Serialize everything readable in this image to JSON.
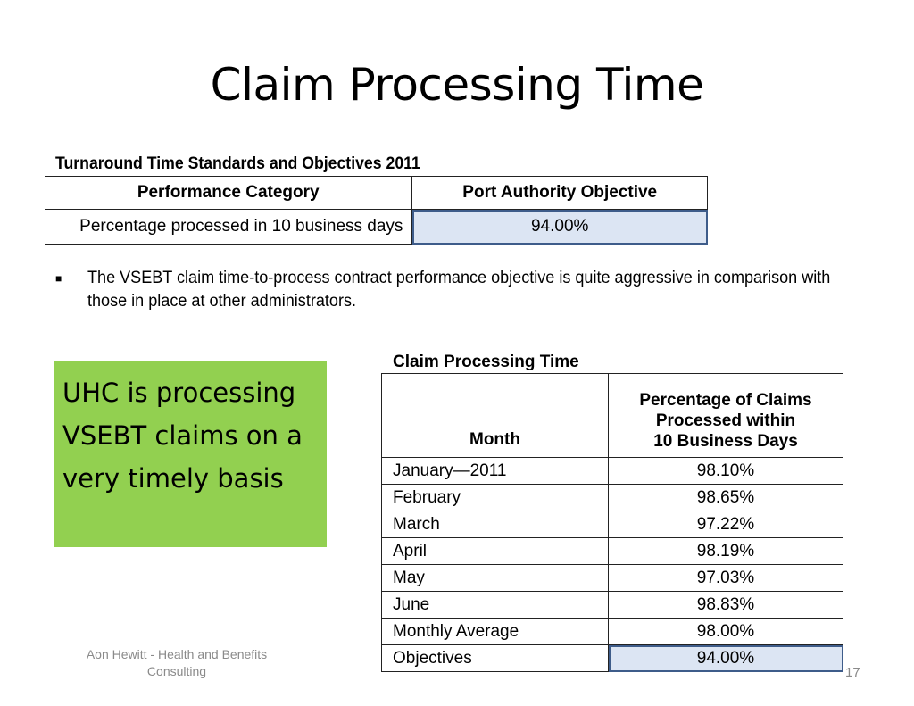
{
  "slide": {
    "title": "Claim Processing Time",
    "footer": "Aon Hewitt - Health and Benefits Consulting",
    "page_number": "17"
  },
  "standards_table": {
    "caption": "Turnaround Time Standards and Objectives 2011",
    "headers": [
      "Performance Category",
      "Port Authority Objective"
    ],
    "rows": [
      {
        "category": "Percentage processed in 10 business days",
        "objective": "94.00%"
      }
    ]
  },
  "bullet": {
    "text": "The VSEBT claim time-to-process contract performance objective is quite aggressive in comparison with those in place at other administrators."
  },
  "callout": {
    "text": "UHC is processing VSEBT claims on a very timely basis"
  },
  "processing_table": {
    "caption": "Claim Processing Time",
    "headers": {
      "month": "Month",
      "percentage": [
        "Percentage of Claims",
        "Processed within",
        "10 Business Days"
      ]
    },
    "rows": [
      {
        "month": "January—2011",
        "value": "98.10%"
      },
      {
        "month": "February",
        "value": "98.65%"
      },
      {
        "month": "March",
        "value": "97.22%"
      },
      {
        "month": "April",
        "value": "98.19%"
      },
      {
        "month": "May",
        "value": "97.03%"
      },
      {
        "month": "June",
        "value": "98.83%"
      },
      {
        "month": "Monthly Average",
        "value": "98.00%"
      },
      {
        "month": "Objectives",
        "value": "94.00%"
      }
    ]
  }
}
